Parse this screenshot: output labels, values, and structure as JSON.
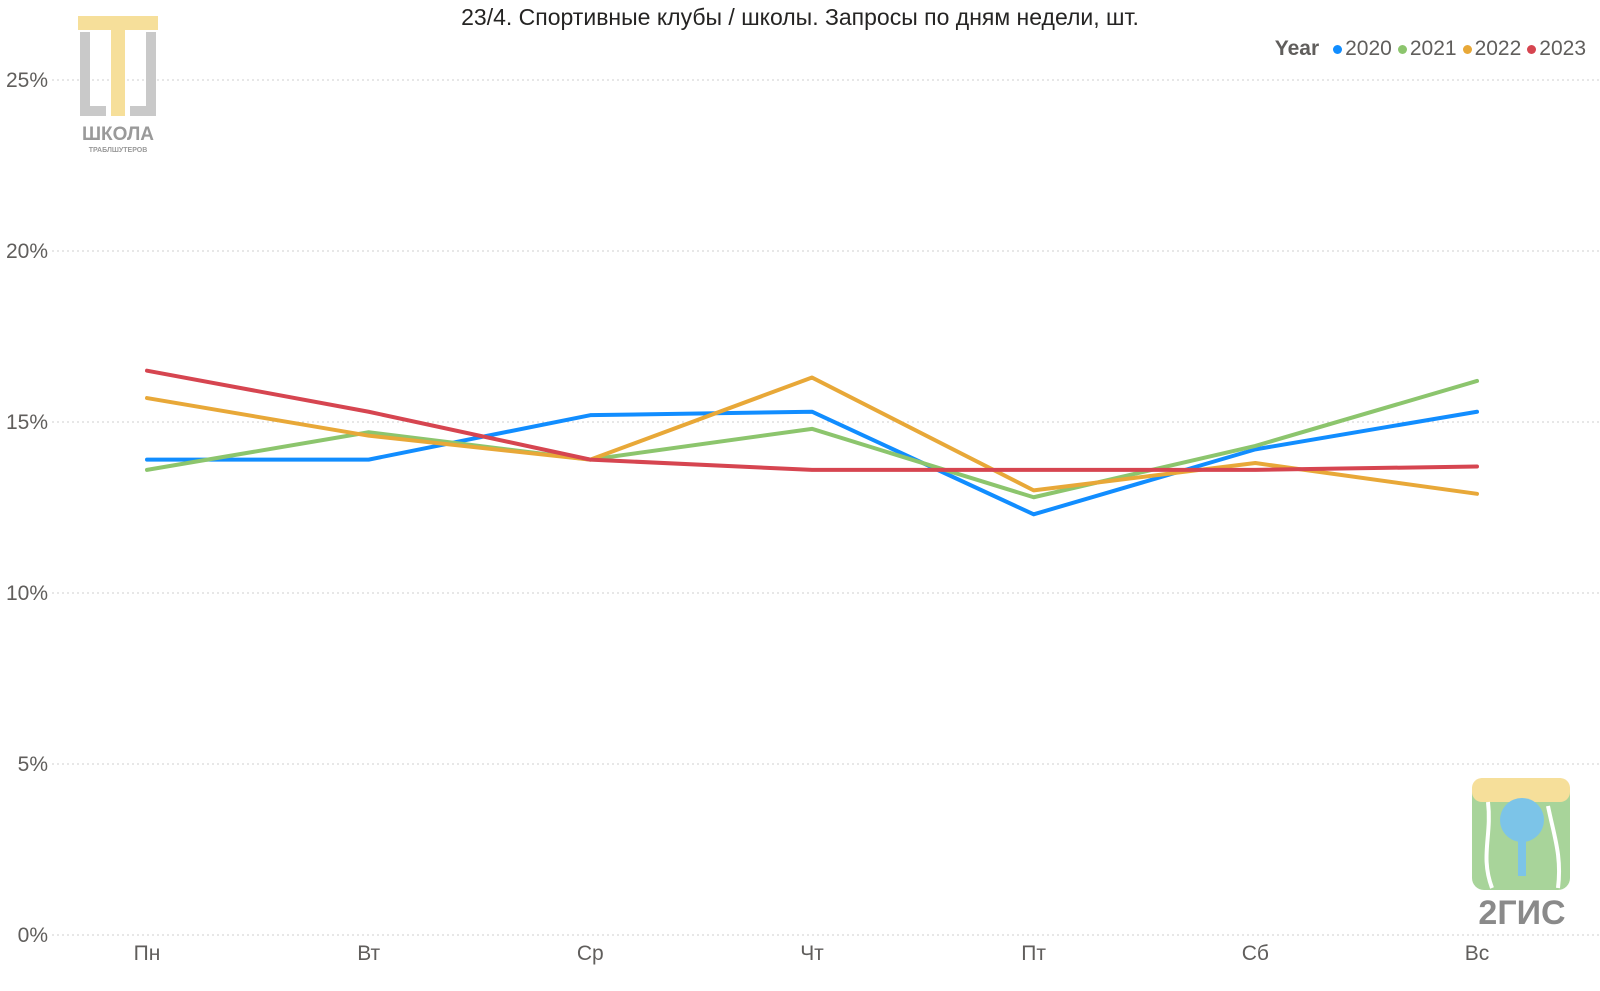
{
  "chart_data": {
    "type": "line",
    "title": "23/4. Спортивные клубы / школы. Запросы по дням недели, шт.",
    "categories": [
      "Пн",
      "Вт",
      "Ср",
      "Чт",
      "Пт",
      "Сб",
      "Вс"
    ],
    "y_ticks": [
      "0%",
      "5%",
      "10%",
      "15%",
      "20%",
      "25%"
    ],
    "ylim": [
      0,
      25
    ],
    "grid": true,
    "legend": {
      "title": "Year",
      "placement": "top-right"
    },
    "series": [
      {
        "name": "2020",
        "color": "#118dff",
        "values": [
          13.9,
          13.9,
          15.2,
          15.3,
          12.3,
          14.2,
          15.3
        ]
      },
      {
        "name": "2021",
        "color": "#8cc56d",
        "values": [
          13.6,
          14.7,
          13.9,
          14.8,
          12.8,
          14.3,
          16.2
        ]
      },
      {
        "name": "2022",
        "color": "#e8a838",
        "values": [
          15.7,
          14.6,
          13.9,
          16.3,
          13.0,
          13.8,
          12.9
        ]
      },
      {
        "name": "2023",
        "color": "#d64550",
        "values": [
          16.5,
          15.3,
          13.9,
          13.6,
          13.6,
          13.6,
          13.7
        ]
      }
    ]
  },
  "logos": {
    "school": {
      "text": "ШКОЛА",
      "subtext": "ТРАБЛШУТЕРОВ"
    },
    "gis": {
      "text": "2ГИС"
    }
  }
}
